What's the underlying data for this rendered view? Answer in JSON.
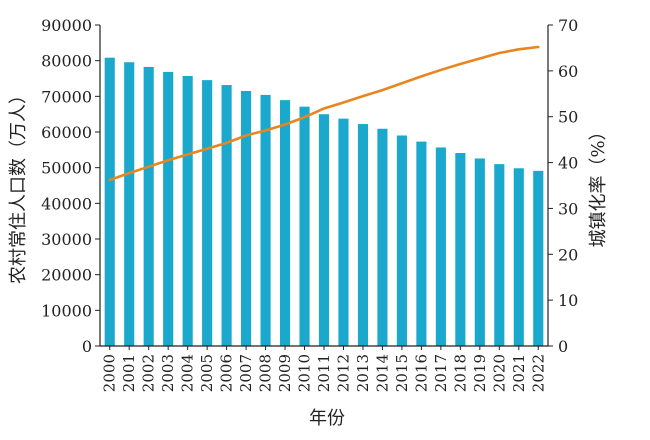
{
  "chart_data": {
    "type": "bar+line",
    "categories": [
      "2000",
      "2001",
      "2002",
      "2003",
      "2004",
      "2005",
      "2006",
      "2007",
      "2008",
      "2009",
      "2010",
      "2011",
      "2012",
      "2013",
      "2014",
      "2015",
      "2016",
      "2017",
      "2018",
      "2019",
      "2020",
      "2021",
      "2022"
    ],
    "xlabel": "年份",
    "ylabel_left": "农村常住人口数（万人）",
    "ylabel_right": "城镇化率（%）",
    "ylim_left": [
      0,
      90000
    ],
    "ylim_right": [
      0,
      70
    ],
    "yticks_left": [
      "0",
      "10000",
      "20000",
      "30000",
      "40000",
      "50000",
      "60000",
      "70000",
      "80000",
      "90000"
    ],
    "yticks_right": [
      "0",
      "10",
      "20",
      "30",
      "40",
      "50",
      "60",
      "70"
    ],
    "grid": false,
    "series": [
      {
        "kind": "bar",
        "axis": "left",
        "color": "#1aa9cc",
        "values": [
          80837,
          79563,
          78241,
          76851,
          75705,
          74544,
          73160,
          71496,
          70399,
          68938,
          67113,
          64989,
          63747,
          62224,
          60908,
          59024,
          57308,
          55668,
          54108,
          52582,
          50992,
          49835,
          49104
        ]
      },
      {
        "kind": "line",
        "axis": "right",
        "color": "#e8861e",
        "values": [
          36.2,
          37.7,
          39.1,
          40.5,
          41.8,
          43.0,
          44.3,
          45.9,
          47.0,
          48.3,
          49.9,
          51.8,
          53.1,
          54.5,
          55.8,
          57.3,
          58.8,
          60.2,
          61.5,
          62.7,
          63.9,
          64.7,
          65.2
        ]
      }
    ]
  }
}
